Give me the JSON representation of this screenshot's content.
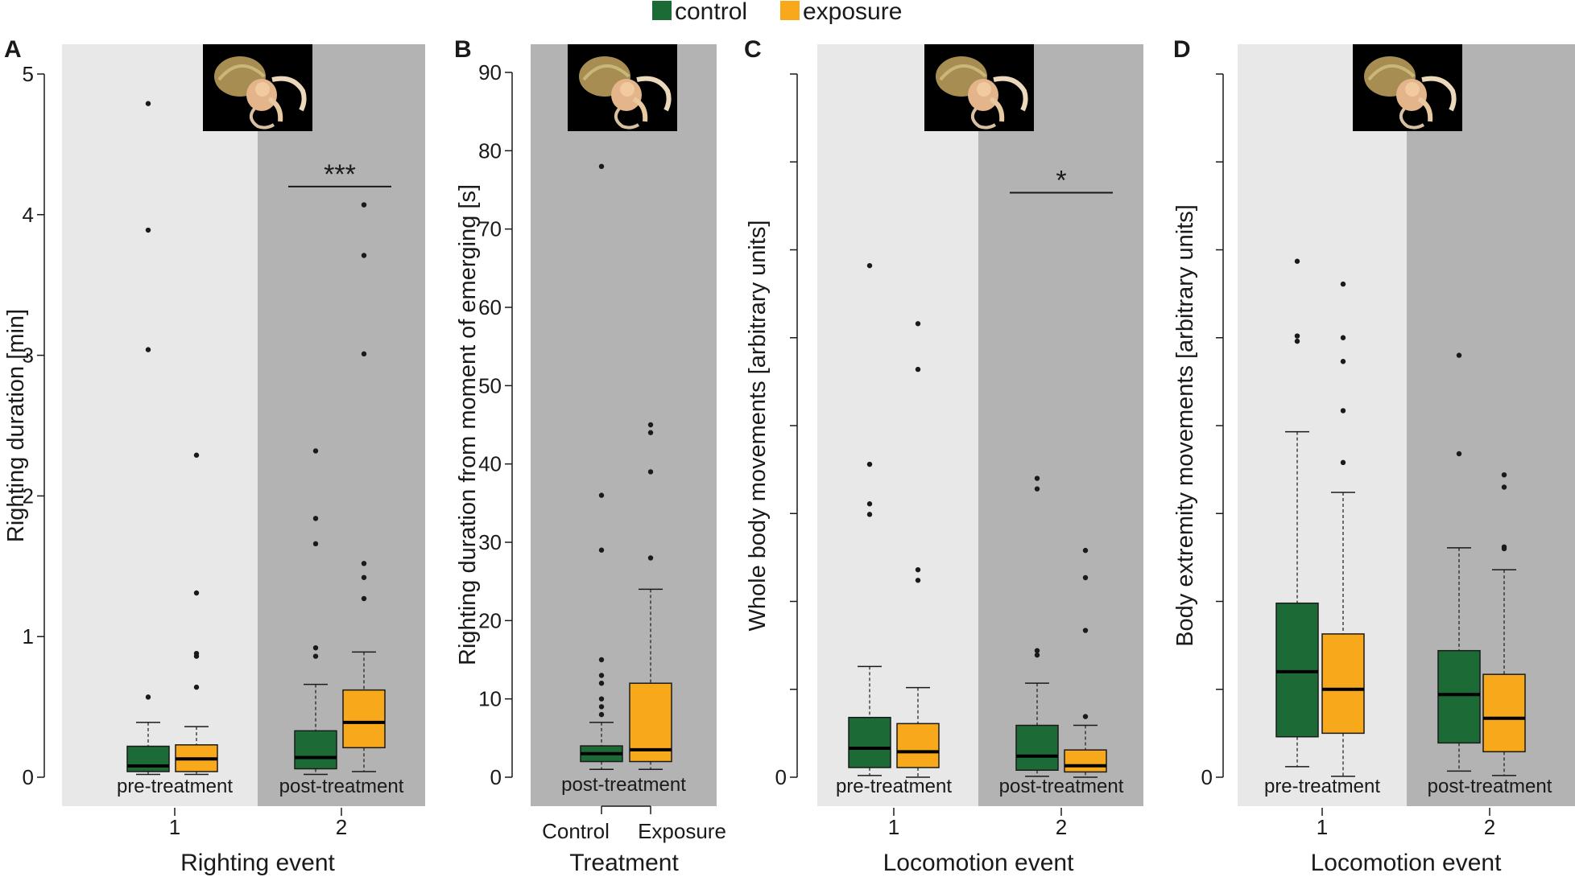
{
  "colors": {
    "control": "#1c6b37",
    "exposure": "#f7a81b",
    "bg_light": "#e8e8e8",
    "bg_dark": "#b3b3b3",
    "axis": "#1a1a1a"
  },
  "legend": {
    "control_label": "control",
    "exposure_label": "exposure"
  },
  "chart_data": [
    {
      "type": "boxplot",
      "panel": "A",
      "ylabel": "Righting duration [min]",
      "xlabel": "Righting event",
      "ylim": [
        0,
        5
      ],
      "yticks": [
        0,
        1,
        2,
        3,
        4,
        5
      ],
      "tick_labels_visible": true,
      "regions": [
        {
          "label": "pre-treatment",
          "shade": "light"
        },
        {
          "label": "post-treatment",
          "shade": "dark"
        }
      ],
      "groups": [
        {
          "x_label": "1",
          "region": 0,
          "boxes": [
            {
              "series": "control",
              "min": 0.02,
              "q1": 0.04,
              "median": 0.08,
              "q3": 0.22,
              "max": 0.39,
              "outliers": [
                0.57,
                3.04,
                3.89,
                4.79
              ]
            },
            {
              "series": "exposure",
              "min": 0.02,
              "q1": 0.04,
              "median": 0.13,
              "q3": 0.23,
              "max": 0.36,
              "outliers": [
                0.64,
                0.86,
                0.88,
                1.31,
                2.29
              ]
            }
          ]
        },
        {
          "x_label": "2",
          "region": 1,
          "boxes": [
            {
              "series": "control",
              "min": 0.02,
              "q1": 0.06,
              "median": 0.14,
              "q3": 0.33,
              "max": 0.66,
              "outliers": [
                0.86,
                0.92,
                1.66,
                1.84,
                2.32
              ]
            },
            {
              "series": "exposure",
              "min": 0.04,
              "q1": 0.21,
              "median": 0.39,
              "q3": 0.62,
              "max": 0.89,
              "outliers": [
                1.27,
                1.42,
                1.52,
                3.01,
                3.71,
                4.07
              ]
            }
          ]
        }
      ],
      "significance": {
        "label": "***",
        "group": 1,
        "y": 4.2
      }
    },
    {
      "type": "boxplot",
      "panel": "B",
      "ylabel": "Righting duration from moment of emerging [s]",
      "xlabel": "Treatment",
      "ylim": [
        0,
        90
      ],
      "yticks": [
        0,
        10,
        20,
        30,
        40,
        50,
        60,
        70,
        80,
        90
      ],
      "tick_labels_visible": true,
      "regions": [
        {
          "label": "post-treatment",
          "shade": "dark"
        }
      ],
      "groups": [
        {
          "x_label": "Control",
          "region": 0,
          "boxes": [
            {
              "series": "control",
              "min": 1,
              "q1": 2,
              "median": 3,
              "q3": 4,
              "max": 7,
              "outliers": [
                8,
                9,
                10,
                12,
                13,
                15,
                29,
                36,
                78
              ]
            }
          ]
        },
        {
          "x_label": "Exposure",
          "region": 0,
          "boxes": [
            {
              "series": "exposure",
              "min": 1,
              "q1": 2,
              "median": 3.5,
              "q3": 12,
              "max": 24,
              "outliers": [
                28,
                39,
                44,
                45
              ]
            }
          ]
        }
      ]
    },
    {
      "type": "boxplot",
      "panel": "C",
      "ylabel": "Whole body movements [arbitrary units]",
      "xlabel": "Locomotion event",
      "ylim": [
        0,
        8
      ],
      "yticks": [
        0,
        1,
        2,
        3,
        4,
        5,
        6,
        7,
        8
      ],
      "tick_labels_visible": false,
      "regions": [
        {
          "label": "pre-treatment",
          "shade": "light"
        },
        {
          "label": "post-treatment",
          "shade": "dark"
        }
      ],
      "groups": [
        {
          "x_label": "1",
          "region": 0,
          "boxes": [
            {
              "series": "control",
              "min": 0.02,
              "q1": 0.11,
              "median": 0.33,
              "q3": 0.68,
              "max": 1.26,
              "outliers": [
                2.99,
                3.11,
                3.56,
                5.82
              ]
            },
            {
              "series": "exposure",
              "min": 0.0,
              "q1": 0.11,
              "median": 0.29,
              "q3": 0.61,
              "max": 1.02,
              "outliers": [
                2.24,
                2.36,
                4.64,
                5.16
              ]
            }
          ]
        },
        {
          "x_label": "2",
          "region": 1,
          "boxes": [
            {
              "series": "control",
              "min": 0.01,
              "q1": 0.08,
              "median": 0.24,
              "q3": 0.59,
              "max": 1.07,
              "outliers": [
                1.39,
                1.44,
                3.28,
                3.4
              ]
            },
            {
              "series": "exposure",
              "min": 0.0,
              "q1": 0.06,
              "median": 0.13,
              "q3": 0.31,
              "max": 0.59,
              "outliers": [
                0.69,
                1.67,
                2.27,
                2.58
              ]
            }
          ]
        }
      ],
      "significance": {
        "label": "*",
        "group": 1,
        "y": 6.65
      }
    },
    {
      "type": "boxplot",
      "panel": "D",
      "ylabel": "Body extremity movements [arbitrary units]",
      "xlabel": "Locomotion event",
      "ylim": [
        0,
        8
      ],
      "yticks": [
        0,
        1,
        2,
        3,
        4,
        5,
        6,
        7,
        8
      ],
      "tick_labels_visible": false,
      "regions": [
        {
          "label": "pre-treatment",
          "shade": "light"
        },
        {
          "label": "post-treatment",
          "shade": "dark"
        }
      ],
      "groups": [
        {
          "x_label": "1",
          "region": 0,
          "boxes": [
            {
              "series": "control",
              "min": 0.12,
              "q1": 0.46,
              "median": 1.2,
              "q3": 1.98,
              "max": 3.93,
              "outliers": [
                4.96,
                5.02,
                5.87
              ]
            },
            {
              "series": "exposure",
              "min": 0.01,
              "q1": 0.5,
              "median": 1.0,
              "q3": 1.63,
              "max": 3.24,
              "outliers": [
                3.58,
                4.17,
                4.73,
                5.0,
                5.61
              ]
            }
          ]
        },
        {
          "x_label": "2",
          "region": 1,
          "boxes": [
            {
              "series": "control",
              "min": 0.07,
              "q1": 0.39,
              "median": 0.94,
              "q3": 1.44,
              "max": 2.61,
              "outliers": [
                3.68,
                4.8
              ]
            },
            {
              "series": "exposure",
              "min": 0.02,
              "q1": 0.29,
              "median": 0.67,
              "q3": 1.17,
              "max": 2.36,
              "outliers": [
                2.6,
                2.62,
                3.3,
                3.44
              ]
            }
          ]
        }
      ]
    }
  ]
}
